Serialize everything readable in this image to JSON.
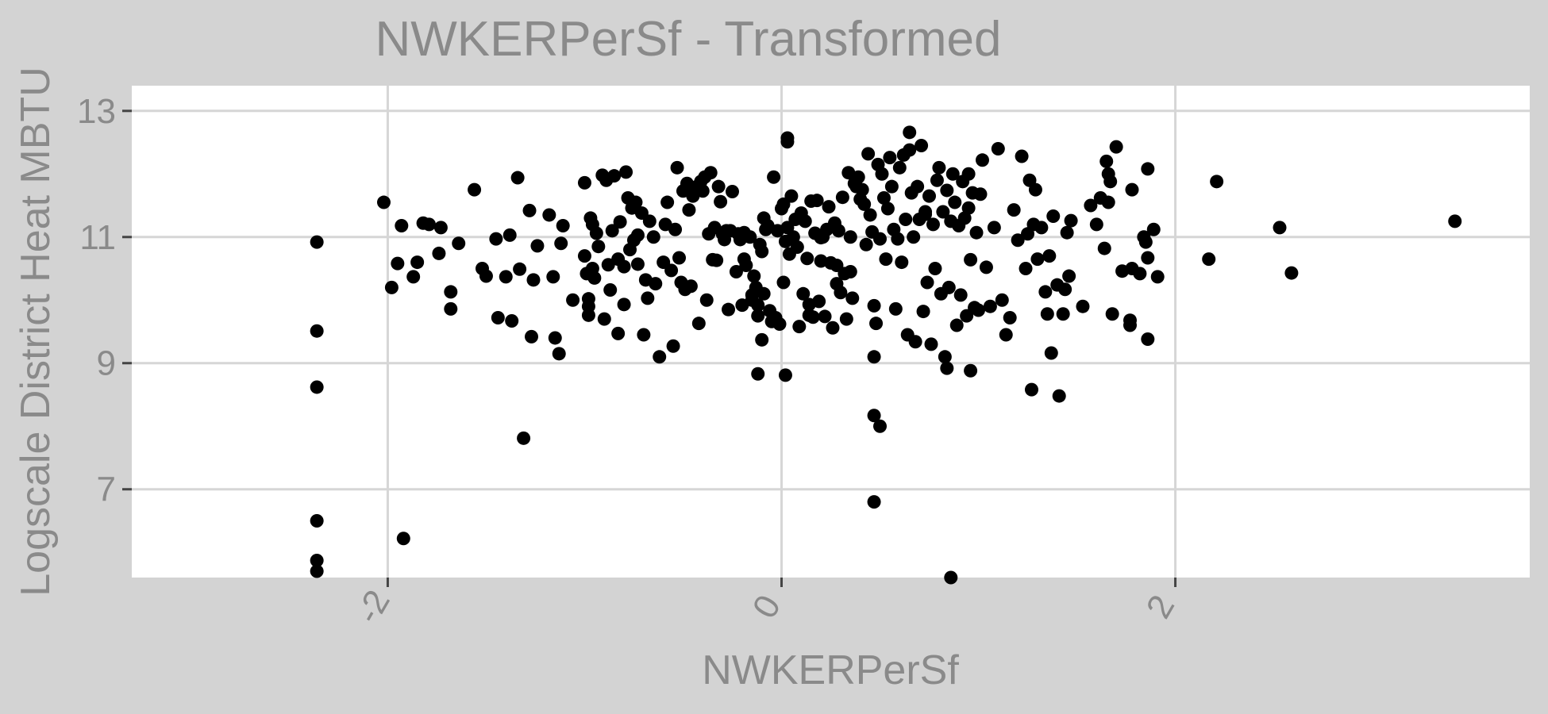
{
  "chart_data": {
    "type": "scatter",
    "title": "NWKERPerSf - Transformed",
    "xlabel": "NWKERPerSf",
    "ylabel": "Logscale District Heat MBTU",
    "xlim": [
      -3.3,
      3.8
    ],
    "ylim": [
      5.6,
      13.4
    ],
    "x_ticks": [
      -2,
      0,
      2
    ],
    "x_tick_labels": [
      "-2",
      "0",
      "2"
    ],
    "y_ticks": [
      7,
      9,
      11,
      13
    ],
    "y_tick_labels": [
      "7",
      "9",
      "11",
      "13"
    ],
    "grid": true,
    "legend": "none",
    "point_color": "#000000",
    "panel_color": "#ffffff",
    "background_color": "#d3d3d3",
    "points": [
      [
        -2.36,
        10.92
      ],
      [
        -2.36,
        9.51
      ],
      [
        -2.36,
        8.62
      ],
      [
        -2.36,
        6.5
      ],
      [
        -2.36,
        5.87
      ],
      [
        -2.36,
        5.7
      ],
      [
        -2.02,
        11.55
      ],
      [
        -1.98,
        10.2
      ],
      [
        -1.95,
        10.58
      ],
      [
        -1.93,
        11.18
      ],
      [
        -1.92,
        6.22
      ],
      [
        -1.87,
        10.37
      ],
      [
        -1.85,
        10.6
      ],
      [
        -1.82,
        11.22
      ],
      [
        -1.79,
        11.2
      ],
      [
        -1.73,
        11.15
      ],
      [
        -1.74,
        10.74
      ],
      [
        -1.68,
        10.13
      ],
      [
        -1.68,
        9.86
      ],
      [
        -1.64,
        10.9
      ],
      [
        -1.56,
        11.75
      ],
      [
        -1.52,
        10.5
      ],
      [
        -1.5,
        10.38
      ],
      [
        -1.45,
        10.97
      ],
      [
        -1.44,
        9.72
      ],
      [
        -1.4,
        10.37
      ],
      [
        -1.38,
        11.03
      ],
      [
        -1.37,
        9.67
      ],
      [
        -1.34,
        11.94
      ],
      [
        -1.33,
        10.49
      ],
      [
        -1.31,
        7.81
      ],
      [
        -1.28,
        11.42
      ],
      [
        -1.26,
        10.32
      ],
      [
        -1.27,
        9.42
      ],
      [
        -1.24,
        10.86
      ],
      [
        -1.18,
        11.35
      ],
      [
        -1.16,
        10.37
      ],
      [
        -1.15,
        9.4
      ],
      [
        -1.13,
        9.15
      ],
      [
        -1.12,
        10.9
      ],
      [
        -1.11,
        11.18
      ],
      [
        -1.06,
        10.0
      ],
      [
        -1.0,
        10.7
      ],
      [
        -1.0,
        11.86
      ],
      [
        -0.99,
        10.42
      ],
      [
        -0.98,
        10.02
      ],
      [
        -0.98,
        9.9
      ],
      [
        -0.98,
        9.76
      ],
      [
        -0.97,
        11.3
      ],
      [
        -0.96,
        11.2
      ],
      [
        -0.96,
        10.5
      ],
      [
        -0.95,
        10.35
      ],
      [
        -0.94,
        11.06
      ],
      [
        -0.93,
        10.85
      ],
      [
        -0.91,
        11.98
      ],
      [
        -0.9,
        9.7
      ],
      [
        -0.89,
        11.9
      ],
      [
        -0.88,
        10.56
      ],
      [
        -0.87,
        10.16
      ],
      [
        -0.86,
        11.1
      ],
      [
        -0.85,
        11.97
      ],
      [
        -0.83,
        9.47
      ],
      [
        -0.83,
        10.65
      ],
      [
        -0.82,
        11.24
      ],
      [
        -0.8,
        10.53
      ],
      [
        -0.8,
        9.93
      ],
      [
        -0.79,
        12.03
      ],
      [
        -0.78,
        11.62
      ],
      [
        -0.77,
        10.8
      ],
      [
        -0.76,
        11.46
      ],
      [
        -0.75,
        10.95
      ],
      [
        -0.74,
        11.55
      ],
      [
        -0.73,
        10.57
      ],
      [
        -0.73,
        11.03
      ],
      [
        -0.71,
        11.38
      ],
      [
        -0.7,
        9.45
      ],
      [
        -0.69,
        10.32
      ],
      [
        -0.68,
        10.03
      ],
      [
        -0.67,
        11.25
      ],
      [
        -0.65,
        11.0
      ],
      [
        -0.64,
        10.26
      ],
      [
        -0.62,
        9.1
      ],
      [
        -0.6,
        10.6
      ],
      [
        -0.59,
        11.2
      ],
      [
        -0.58,
        11.55
      ],
      [
        -0.56,
        10.47
      ],
      [
        -0.55,
        9.27
      ],
      [
        -0.54,
        11.12
      ],
      [
        -0.53,
        12.1
      ],
      [
        -0.52,
        10.67
      ],
      [
        -0.51,
        10.28
      ],
      [
        -0.5,
        11.73
      ],
      [
        -0.49,
        10.17
      ],
      [
        -0.48,
        11.85
      ],
      [
        -0.47,
        11.43
      ],
      [
        -0.46,
        10.22
      ],
      [
        -0.45,
        11.65
      ],
      [
        -0.44,
        11.78
      ],
      [
        -0.43,
        11.8
      ],
      [
        -0.42,
        9.63
      ],
      [
        -0.41,
        11.88
      ],
      [
        -0.4,
        11.73
      ],
      [
        -0.39,
        11.95
      ],
      [
        -0.38,
        10.0
      ],
      [
        -0.37,
        11.05
      ],
      [
        -0.36,
        12.02
      ],
      [
        -0.35,
        10.64
      ],
      [
        -0.34,
        11.15
      ],
      [
        -0.33,
        10.63
      ],
      [
        -0.32,
        11.8
      ],
      [
        -0.31,
        11.56
      ],
      [
        -0.3,
        11.05
      ],
      [
        -0.29,
        10.96
      ],
      [
        -0.28,
        11.1
      ],
      [
        -0.27,
        9.85
      ],
      [
        -0.26,
        11.1
      ],
      [
        -0.25,
        11.72
      ],
      [
        -0.23,
        10.45
      ],
      [
        -0.22,
        11.05
      ],
      [
        -0.21,
        10.96
      ],
      [
        -0.2,
        9.92
      ],
      [
        -0.19,
        11.07
      ],
      [
        -0.18,
        10.55
      ],
      [
        -0.16,
        11.0
      ],
      [
        -0.15,
        10.0
      ],
      [
        -0.14,
        10.38
      ],
      [
        -0.13,
        10.2
      ],
      [
        -0.12,
        9.75
      ],
      [
        -0.11,
        10.88
      ],
      [
        -0.1,
        9.37
      ],
      [
        -0.09,
        11.3
      ],
      [
        -0.08,
        11.12
      ],
      [
        -0.07,
        11.18
      ],
      [
        -0.06,
        9.83
      ],
      [
        -0.05,
        9.66
      ],
      [
        -0.04,
        11.95
      ],
      [
        -0.03,
        9.72
      ],
      [
        -0.02,
        11.1
      ],
      [
        -0.01,
        9.62
      ],
      [
        0.0,
        11.45
      ],
      [
        0.01,
        11.52
      ],
      [
        0.02,
        10.93
      ],
      [
        0.03,
        11.15
      ],
      [
        0.04,
        10.73
      ],
      [
        0.05,
        11.65
      ],
      [
        0.06,
        11.0
      ],
      [
        0.07,
        11.28
      ],
      [
        0.08,
        10.84
      ],
      [
        0.09,
        9.58
      ],
      [
        0.1,
        11.38
      ],
      [
        0.11,
        10.1
      ],
      [
        0.12,
        11.25
      ],
      [
        0.13,
        10.66
      ],
      [
        0.14,
        9.93
      ],
      [
        0.15,
        11.57
      ],
      [
        0.16,
        9.73
      ],
      [
        0.17,
        11.06
      ],
      [
        0.18,
        11.58
      ],
      [
        0.19,
        9.98
      ],
      [
        0.2,
        10.99
      ],
      [
        0.21,
        11.0
      ],
      [
        0.22,
        9.74
      ],
      [
        0.23,
        11.12
      ],
      [
        0.24,
        11.48
      ],
      [
        0.25,
        10.59
      ],
      [
        0.26,
        9.56
      ],
      [
        0.27,
        11.22
      ],
      [
        0.28,
        10.26
      ],
      [
        0.29,
        11.1
      ],
      [
        0.3,
        10.12
      ],
      [
        0.31,
        11.63
      ],
      [
        0.32,
        10.42
      ],
      [
        0.33,
        9.7
      ],
      [
        0.34,
        12.02
      ],
      [
        0.35,
        11.0
      ],
      [
        0.36,
        10.03
      ],
      [
        -0.12,
        9.92
      ],
      [
        -0.1,
        10.77
      ],
      [
        0.03,
        12.57
      ],
      [
        0.03,
        12.51
      ],
      [
        -0.12,
        8.83
      ],
      [
        0.02,
        8.81
      ],
      [
        -0.09,
        10.1
      ],
      [
        0.01,
        10.28
      ],
      [
        -0.19,
        10.65
      ],
      [
        -0.15,
        10.08
      ],
      [
        0.14,
        9.76
      ],
      [
        0.2,
        10.62
      ],
      [
        0.28,
        10.55
      ],
      [
        0.35,
        10.45
      ],
      [
        0.37,
        11.85
      ],
      [
        0.38,
        11.8
      ],
      [
        0.39,
        11.95
      ],
      [
        0.4,
        11.6
      ],
      [
        0.41,
        11.75
      ],
      [
        0.42,
        11.52
      ],
      [
        0.43,
        10.88
      ],
      [
        0.44,
        12.32
      ],
      [
        0.45,
        11.35
      ],
      [
        0.46,
        11.08
      ],
      [
        0.47,
        9.91
      ],
      [
        0.48,
        9.63
      ],
      [
        0.49,
        12.15
      ],
      [
        0.5,
        10.97
      ],
      [
        0.51,
        12.0
      ],
      [
        0.52,
        11.62
      ],
      [
        0.53,
        10.65
      ],
      [
        0.54,
        11.45
      ],
      [
        0.55,
        12.26
      ],
      [
        0.56,
        11.8
      ],
      [
        0.57,
        11.12
      ],
      [
        0.58,
        9.86
      ],
      [
        0.59,
        10.97
      ],
      [
        0.6,
        12.1
      ],
      [
        0.61,
        10.6
      ],
      [
        0.62,
        12.3
      ],
      [
        0.63,
        11.28
      ],
      [
        0.64,
        9.45
      ],
      [
        0.65,
        12.38
      ],
      [
        0.66,
        11.7
      ],
      [
        0.67,
        11.0
      ],
      [
        0.68,
        9.34
      ],
      [
        0.69,
        11.8
      ],
      [
        0.7,
        11.28
      ],
      [
        0.71,
        12.45
      ],
      [
        0.72,
        9.82
      ],
      [
        0.73,
        11.36
      ],
      [
        0.74,
        10.28
      ],
      [
        0.75,
        11.65
      ],
      [
        0.76,
        9.3
      ],
      [
        0.77,
        11.2
      ],
      [
        0.78,
        10.5
      ],
      [
        0.79,
        11.9
      ],
      [
        0.8,
        12.1
      ],
      [
        0.81,
        10.1
      ],
      [
        0.82,
        11.4
      ],
      [
        0.83,
        9.1
      ],
      [
        0.84,
        11.74
      ],
      [
        0.85,
        10.2
      ],
      [
        0.86,
        11.25
      ],
      [
        0.87,
        12.0
      ],
      [
        0.88,
        11.55
      ],
      [
        0.89,
        9.6
      ],
      [
        0.9,
        11.18
      ],
      [
        0.91,
        10.08
      ],
      [
        0.92,
        11.88
      ],
      [
        0.93,
        11.3
      ],
      [
        0.94,
        9.75
      ],
      [
        0.95,
        11.46
      ],
      [
        0.96,
        10.64
      ],
      [
        0.97,
        11.7
      ],
      [
        0.98,
        9.88
      ],
      [
        0.99,
        11.07
      ],
      [
        1.0,
        9.84
      ],
      [
        1.01,
        11.68
      ],
      [
        1.02,
        12.22
      ],
      [
        0.47,
        8.17
      ],
      [
        0.5,
        8.0
      ],
      [
        0.47,
        6.8
      ],
      [
        0.47,
        9.1
      ],
      [
        0.65,
        12.66
      ],
      [
        0.86,
        5.6
      ],
      [
        0.84,
        8.92
      ],
      [
        0.96,
        8.88
      ],
      [
        0.95,
        12.0
      ],
      [
        0.73,
        11.4
      ],
      [
        1.04,
        10.52
      ],
      [
        1.06,
        9.9
      ],
      [
        1.08,
        11.15
      ],
      [
        1.1,
        12.4
      ],
      [
        1.12,
        10.0
      ],
      [
        1.14,
        9.45
      ],
      [
        1.16,
        9.72
      ],
      [
        1.18,
        11.43
      ],
      [
        1.2,
        10.95
      ],
      [
        1.22,
        12.28
      ],
      [
        1.24,
        10.5
      ],
      [
        1.25,
        11.05
      ],
      [
        1.26,
        11.9
      ],
      [
        1.27,
        8.58
      ],
      [
        1.28,
        11.2
      ],
      [
        1.29,
        11.75
      ],
      [
        1.3,
        10.65
      ],
      [
        1.32,
        11.15
      ],
      [
        1.34,
        10.13
      ],
      [
        1.35,
        9.78
      ],
      [
        1.36,
        10.7
      ],
      [
        1.37,
        9.16
      ],
      [
        1.38,
        11.33
      ],
      [
        1.4,
        10.24
      ],
      [
        1.41,
        8.48
      ],
      [
        1.43,
        9.78
      ],
      [
        1.44,
        10.17
      ],
      [
        1.45,
        11.07
      ],
      [
        1.46,
        10.38
      ],
      [
        1.47,
        11.26
      ],
      [
        1.53,
        9.9
      ],
      [
        1.57,
        11.5
      ],
      [
        1.6,
        11.2
      ],
      [
        1.62,
        11.62
      ],
      [
        1.64,
        10.82
      ],
      [
        1.65,
        12.2
      ],
      [
        1.66,
        12.0
      ],
      [
        1.67,
        11.88
      ],
      [
        1.68,
        9.78
      ],
      [
        1.66,
        11.55
      ],
      [
        1.7,
        12.43
      ],
      [
        1.73,
        10.46
      ],
      [
        1.77,
        9.68
      ],
      [
        1.77,
        9.6
      ],
      [
        1.78,
        11.75
      ],
      [
        1.78,
        10.5
      ],
      [
        1.82,
        10.42
      ],
      [
        1.84,
        11.0
      ],
      [
        1.85,
        10.92
      ],
      [
        1.86,
        12.08
      ],
      [
        1.86,
        10.67
      ],
      [
        1.86,
        9.38
      ],
      [
        1.89,
        11.12
      ],
      [
        1.91,
        10.37
      ],
      [
        2.17,
        10.65
      ],
      [
        2.21,
        11.88
      ],
      [
        2.53,
        11.15
      ],
      [
        2.59,
        10.43
      ],
      [
        3.42,
        11.25
      ]
    ]
  }
}
